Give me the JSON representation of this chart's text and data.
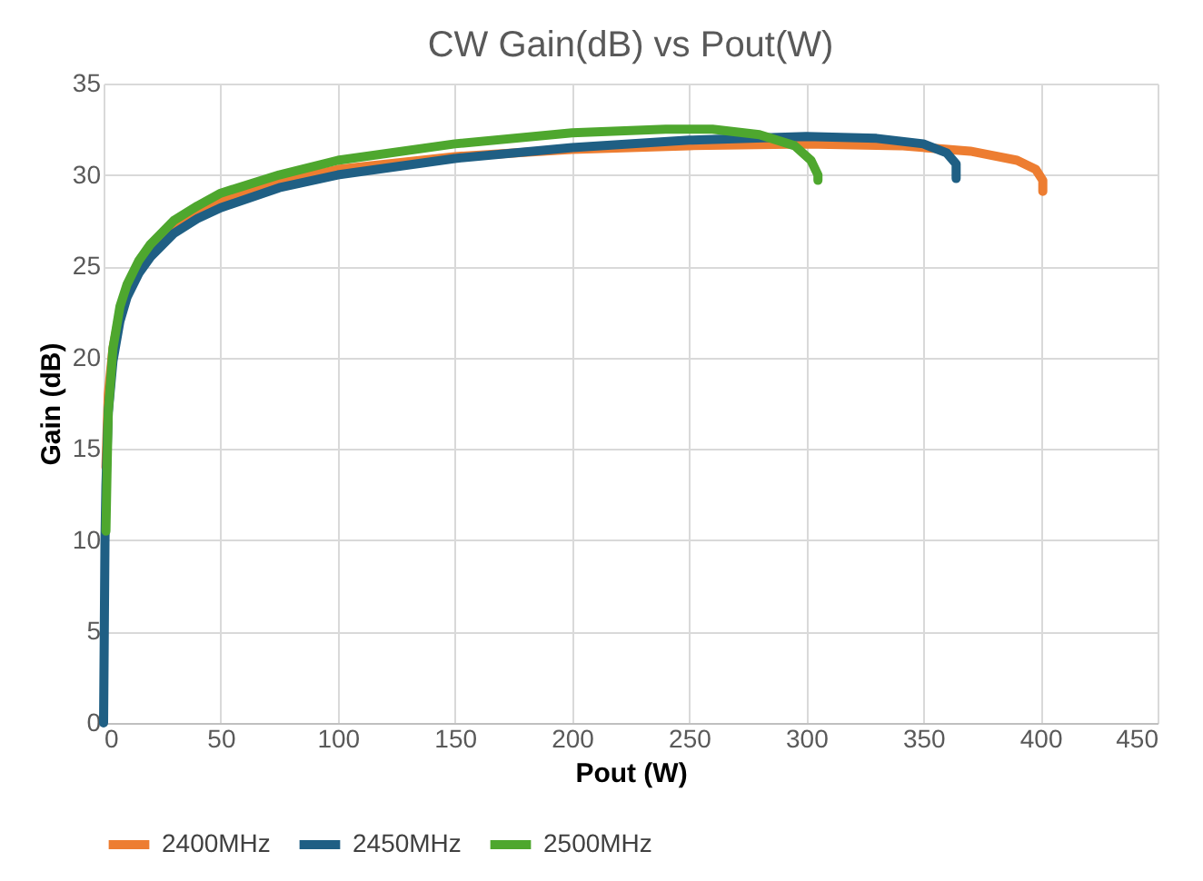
{
  "chart_data": {
    "type": "line",
    "title": "CW Gain(dB) vs Pout(W)",
    "xlabel": "Pout (W)",
    "ylabel": "Gain (dB)",
    "xlim": [
      0,
      450
    ],
    "xticks": [
      0,
      50,
      100,
      150,
      200,
      250,
      300,
      350,
      400,
      450
    ],
    "ylim": [
      0,
      35
    ],
    "yticks": [
      0,
      5,
      10,
      15,
      20,
      25,
      30,
      35
    ],
    "grid": true,
    "legend": "bottom",
    "marker": "none",
    "line_style": "solid",
    "series": [
      {
        "name": "2400MHz",
        "color": "#ed7d31",
        "x": [
          1,
          2,
          4,
          7,
          10,
          15,
          20,
          30,
          40,
          50,
          75,
          100,
          150,
          200,
          250,
          300,
          340,
          370,
          390,
          398,
          401,
          401
        ],
        "values": [
          14,
          18,
          20.5,
          22.5,
          23.8,
          25,
          26,
          27.2,
          28,
          28.6,
          29.6,
          30.3,
          31,
          31.4,
          31.6,
          31.7,
          31.6,
          31.3,
          30.8,
          30.3,
          29.7,
          29.1
        ]
      },
      {
        "name": "2450MHz",
        "color": "#1f5f84",
        "x": [
          0,
          0.3,
          0.6,
          1,
          2,
          4,
          7,
          10,
          15,
          20,
          30,
          40,
          50,
          75,
          100,
          150,
          200,
          250,
          300,
          330,
          350,
          360,
          364,
          364
        ],
        "values": [
          0,
          5,
          10,
          13,
          17,
          19.8,
          22,
          23.3,
          24.6,
          25.5,
          26.8,
          27.6,
          28.2,
          29.3,
          30,
          30.9,
          31.5,
          31.9,
          32.1,
          32,
          31.7,
          31.2,
          30.6,
          29.8
        ]
      },
      {
        "name": "2500MHz",
        "color": "#4ea72e",
        "x": [
          1,
          1.5,
          2,
          4,
          7,
          10,
          15,
          20,
          30,
          40,
          50,
          75,
          100,
          150,
          200,
          240,
          260,
          280,
          295,
          302,
          305,
          305
        ],
        "values": [
          10.5,
          14,
          17,
          20.5,
          22.8,
          24,
          25.3,
          26.2,
          27.5,
          28.3,
          29,
          30,
          30.8,
          31.7,
          32.3,
          32.5,
          32.5,
          32.2,
          31.6,
          30.8,
          30,
          29.7
        ]
      }
    ]
  }
}
